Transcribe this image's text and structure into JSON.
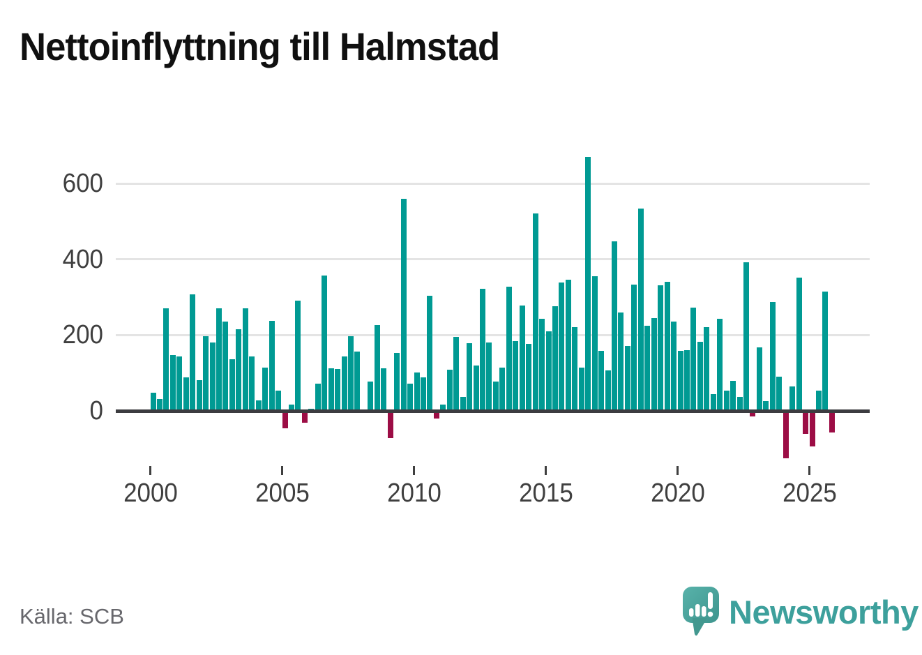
{
  "title": "Nettoinflyttning till Halmstad",
  "source": "Källa: SCB",
  "brand": {
    "name": "Newsworthy",
    "icon": "speech-bubble-bar-chart-icon",
    "wordmark_color": "#3da09c",
    "icon_color": "#4aa69e"
  },
  "chart_data": {
    "type": "bar",
    "title": "Nettoinflyttning till Halmstad",
    "xlabel": "",
    "ylabel": "",
    "unit": "persons per quarter (net migration)",
    "frequency": "quarterly",
    "ylim": [
      -130,
      700
    ],
    "yticks": [
      0,
      200,
      400,
      600
    ],
    "xticks": [
      2000,
      2005,
      2010,
      2015,
      2020,
      2025
    ],
    "grid": true,
    "legend": false,
    "positive_color": "#009a93",
    "negative_color": "#9c0d45",
    "years": [
      {
        "year": 2000,
        "values": [
          48,
          31,
          270,
          148
        ]
      },
      {
        "year": 2001,
        "values": [
          143,
          88,
          308,
          81
        ]
      },
      {
        "year": 2002,
        "values": [
          197,
          180,
          271,
          235
        ]
      },
      {
        "year": 2003,
        "values": [
          136,
          216,
          271,
          143
        ]
      },
      {
        "year": 2004,
        "values": [
          28,
          114,
          238,
          53
        ]
      },
      {
        "year": 2005,
        "values": [
          -40,
          16,
          290,
          -26
        ]
      },
      {
        "year": 2006,
        "values": [
          6,
          72,
          357,
          112
        ]
      },
      {
        "year": 2007,
        "values": [
          110,
          144,
          197,
          156
        ]
      },
      {
        "year": 2008,
        "values": [
          0,
          78,
          226,
          112
        ]
      },
      {
        "year": 2009,
        "values": [
          -66,
          153,
          560,
          71
        ]
      },
      {
        "year": 2010,
        "values": [
          101,
          89,
          304,
          -15
        ]
      },
      {
        "year": 2011,
        "values": [
          17,
          109,
          195,
          36
        ]
      },
      {
        "year": 2012,
        "values": [
          178,
          119,
          322,
          181
        ]
      },
      {
        "year": 2013,
        "values": [
          77,
          115,
          327,
          184
        ]
      },
      {
        "year": 2014,
        "values": [
          278,
          177,
          520,
          243
        ]
      },
      {
        "year": 2015,
        "values": [
          210,
          276,
          338,
          346
        ]
      },
      {
        "year": 2016,
        "values": [
          220,
          114,
          670,
          356
        ]
      },
      {
        "year": 2017,
        "values": [
          159,
          106,
          447,
          259
        ]
      },
      {
        "year": 2018,
        "values": [
          172,
          333,
          533,
          225
        ]
      },
      {
        "year": 2019,
        "values": [
          244,
          332,
          341,
          236
        ]
      },
      {
        "year": 2020,
        "values": [
          158,
          160,
          272,
          183
        ]
      },
      {
        "year": 2021,
        "values": [
          220,
          45,
          243,
          54
        ]
      },
      {
        "year": 2022,
        "values": [
          80,
          36,
          392,
          -10
        ]
      },
      {
        "year": 2023,
        "values": [
          167,
          25,
          288,
          91
        ]
      },
      {
        "year": 2024,
        "values": [
          -120,
          65,
          352,
          -55
        ]
      },
      {
        "year": 2025,
        "values": [
          -88,
          53,
          314,
          -51
        ]
      }
    ]
  }
}
